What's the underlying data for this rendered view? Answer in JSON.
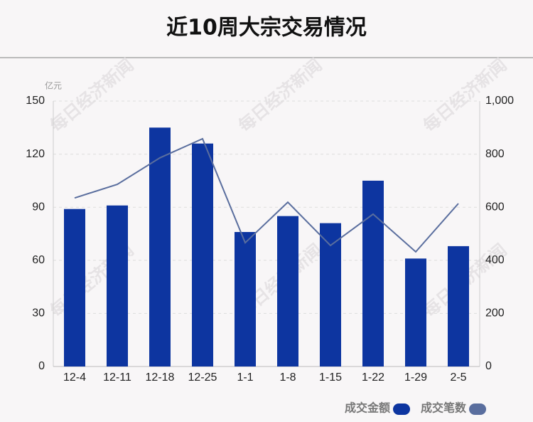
{
  "chart_data": {
    "type": "bar_line",
    "title": "近10周大宗交易情况",
    "y_unit": "亿元",
    "watermark": "每日经济新闻",
    "categories": [
      "12-4",
      "12-11",
      "12-18",
      "12-25",
      "1-1",
      "1-8",
      "1-15",
      "1-22",
      "1-29",
      "2-5"
    ],
    "series": [
      {
        "name": "成交金额",
        "color": "#0d35a0",
        "type": "bar",
        "values": [
          89,
          91,
          135,
          126,
          76,
          85,
          81,
          105,
          61,
          68
        ]
      },
      {
        "name": "成交笔数",
        "color": "#5a6e9e",
        "type": "line",
        "axis": "y2",
        "values": [
          635,
          686,
          786,
          858,
          466,
          619,
          456,
          574,
          432,
          614
        ]
      }
    ],
    "ylim": [
      0,
      150
    ],
    "yticks": [
      0,
      30,
      60,
      90,
      120,
      150
    ],
    "y2lim": [
      0,
      1000
    ],
    "y2ticks": [
      0,
      200,
      400,
      600,
      800,
      {
        "value": 1000,
        "label": "1,000"
      }
    ],
    "grid": true,
    "legend": "bottom-right"
  }
}
